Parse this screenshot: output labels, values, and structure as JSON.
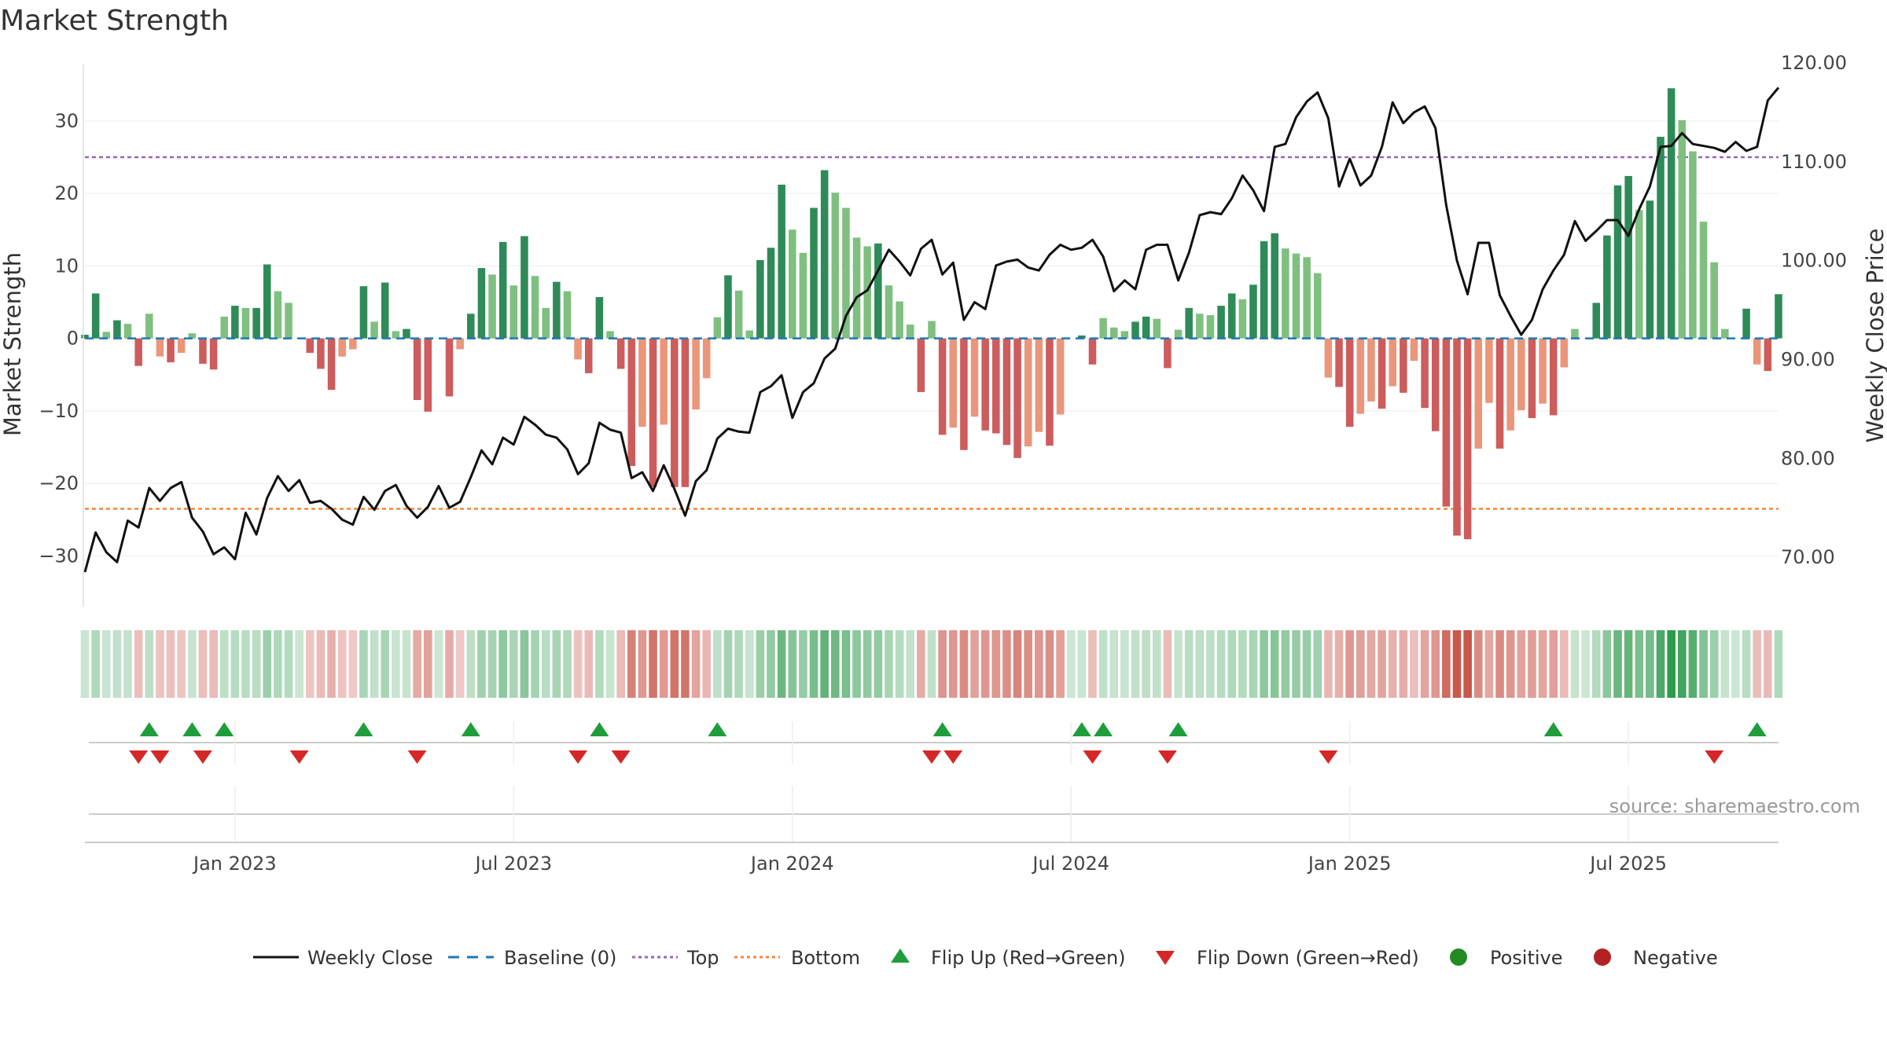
{
  "chart_data": {
    "type": "bar+line",
    "title": "Market Strength",
    "ylabel_left": "Market Strength",
    "ylabel_right": "Weekly Close Price",
    "ylim_left": [
      -37,
      38
    ],
    "ylim_right": [
      65,
      120
    ],
    "left_ticks": [
      30,
      20,
      10,
      0,
      -10,
      -20,
      -30
    ],
    "left_tick_labels": [
      "30",
      "20",
      "10",
      "0",
      "−10",
      "−20",
      "−30"
    ],
    "right_ticks": [
      120,
      110,
      100,
      90,
      80,
      70
    ],
    "right_tick_labels": [
      "120.00",
      "110.00",
      "100.00",
      "90.00",
      "80.00",
      "70.00"
    ],
    "x_tick_labels": [
      "Jan 2023",
      "Jul 2023",
      "Jan 2024",
      "Jul 2024",
      "Jan 2025",
      "Jul 2025"
    ],
    "x_tick_weeks": [
      14,
      40,
      66,
      92,
      118,
      144
    ],
    "top_line": 25,
    "bottom_line": -23.5,
    "baseline": 0,
    "strength_values": [
      0.5,
      6.2,
      0.9,
      2.5,
      2.0,
      -3.8,
      3.4,
      -2.5,
      -3.3,
      -2.0,
      0.7,
      -3.5,
      -4.3,
      3.0,
      4.5,
      4.2,
      4.2,
      10.2,
      6.5,
      4.9,
      0.0,
      -2.0,
      -4.2,
      -7.1,
      -2.5,
      -1.5,
      7.2,
      2.3,
      7.7,
      1.0,
      1.3,
      -8.5,
      -10.1,
      0.0,
      -8.0,
      -1.5,
      3.4,
      9.7,
      8.8,
      13.3,
      7.3,
      14.1,
      8.6,
      4.2,
      7.8,
      6.5,
      -2.9,
      -4.8,
      5.7,
      1.0,
      -4.2,
      -17.6,
      -12.2,
      -20.5,
      -11.9,
      -20.5,
      -20.5,
      -9.8,
      -5.5,
      2.9,
      8.7,
      6.6,
      1.1,
      10.8,
      12.5,
      21.2,
      15.0,
      11.8,
      18.0,
      23.2,
      20.1,
      18.0,
      13.9,
      12.7,
      13.1,
      7.3,
      5.1,
      1.9,
      -7.4,
      2.4,
      -13.3,
      -12.3,
      -15.4,
      -10.8,
      -12.7,
      -13.1,
      -14.7,
      -16.5,
      -14.9,
      -12.9,
      -14.8,
      -10.5,
      0.0,
      0.4,
      -3.6,
      2.8,
      1.5,
      1.0,
      2.3,
      3.0,
      2.7,
      -4.1,
      1.2,
      4.2,
      3.4,
      3.2,
      4.5,
      6.2,
      5.4,
      7.4,
      13.4,
      14.5,
      12.4,
      11.7,
      11.2,
      9.0,
      -5.4,
      -6.7,
      -12.2,
      -10.4,
      -8.7,
      -9.7,
      -6.6,
      -7.5,
      -3.1,
      -9.6,
      -12.8,
      -23.2,
      -27.2,
      -27.7,
      -15.2,
      -8.9,
      -15.2,
      -12.7,
      -9.9,
      -11.0,
      -9.0,
      -10.6,
      -4.0,
      1.3,
      0.0,
      4.9,
      14.2,
      21.1,
      22.4,
      17.7,
      19.0,
      27.8,
      34.5,
      30.1,
      25.8,
      16.1,
      10.5,
      1.3,
      0.0,
      4.1,
      -3.6,
      -4.5,
      6.1
    ],
    "close_values": [
      68.5,
      72.5,
      70.5,
      69.5,
      73.7,
      73.0,
      77.0,
      75.7,
      77.0,
      77.6,
      74.0,
      72.6,
      70.3,
      71.0,
      69.8,
      74.5,
      72.3,
      76.0,
      78.2,
      76.7,
      77.8,
      75.5,
      75.7,
      74.9,
      73.8,
      73.3,
      76.1,
      74.8,
      76.7,
      77.3,
      75.2,
      74.0,
      75.1,
      77.2,
      75.0,
      75.6,
      78.1,
      80.8,
      79.4,
      82.1,
      81.4,
      84.2,
      83.4,
      82.4,
      82.1,
      80.9,
      78.4,
      79.5,
      83.6,
      82.9,
      82.6,
      78.0,
      78.6,
      76.7,
      79.3,
      76.9,
      74.2,
      77.7,
      78.8,
      82.0,
      83.0,
      82.7,
      82.6,
      86.7,
      87.3,
      88.4,
      84.1,
      86.7,
      87.6,
      90.1,
      91.1,
      94.4,
      96.3,
      97.0,
      99.0,
      101.1,
      99.9,
      98.5,
      101.2,
      102.1,
      98.6,
      99.8,
      94.0,
      95.8,
      95.1,
      99.5,
      99.9,
      100.1,
      99.3,
      99.0,
      100.6,
      101.6,
      101.1,
      101.3,
      102.1,
      100.4,
      96.9,
      98.0,
      97.1,
      101.1,
      101.6,
      101.6,
      98.0,
      100.8,
      104.6,
      104.9,
      104.7,
      106.3,
      108.6,
      107.1,
      105.0,
      111.5,
      111.8,
      114.5,
      116.1,
      117.0,
      114.4,
      107.5,
      110.3,
      107.6,
      108.6,
      111.5,
      116.0,
      113.9,
      115.0,
      115.6,
      113.4,
      105.6,
      100.0,
      96.6,
      101.8,
      101.8,
      96.5,
      94.4,
      92.5,
      94.0,
      97.1,
      99.0,
      100.6,
      104.0,
      102.0,
      103.0,
      104.1,
      104.1,
      102.5,
      105.2,
      107.5,
      111.5,
      111.6,
      112.9,
      111.8,
      111.6,
      111.4,
      111.0,
      112.0,
      111.1,
      111.5,
      116.2,
      117.5
    ],
    "flip_up_weeks": [
      6,
      10,
      13,
      26,
      36,
      48,
      59,
      80,
      93,
      95,
      102,
      137,
      156
    ],
    "flip_down_weeks": [
      5,
      7,
      11,
      20,
      31,
      46,
      50,
      79,
      81,
      94,
      101,
      116,
      152
    ],
    "colors": {
      "strong_green": "#2e8b57",
      "light_green": "#7fbf7f",
      "strong_red": "#cd5c5c",
      "light_red": "#e9967a",
      "close_line": "#111111",
      "baseline": "#1f77b4",
      "top": "#9467bd",
      "bottom": "#f0883e",
      "flip_up": "#1f9d3a",
      "flip_down": "#d62728",
      "positive": "#228b22",
      "negative": "#b22222",
      "heat_pos": "#2e9a4c",
      "heat_neg": "#c0392b"
    }
  },
  "source_text": "source: sharemaestro.com",
  "legend": {
    "weekly_close": "Weekly Close",
    "baseline": "Baseline (0)",
    "top": "Top",
    "bottom": "Bottom",
    "flip_up": "Flip Up (Red→Green)",
    "flip_down": "Flip Down (Green→Red)",
    "positive": "Positive",
    "negative": "Negative"
  }
}
